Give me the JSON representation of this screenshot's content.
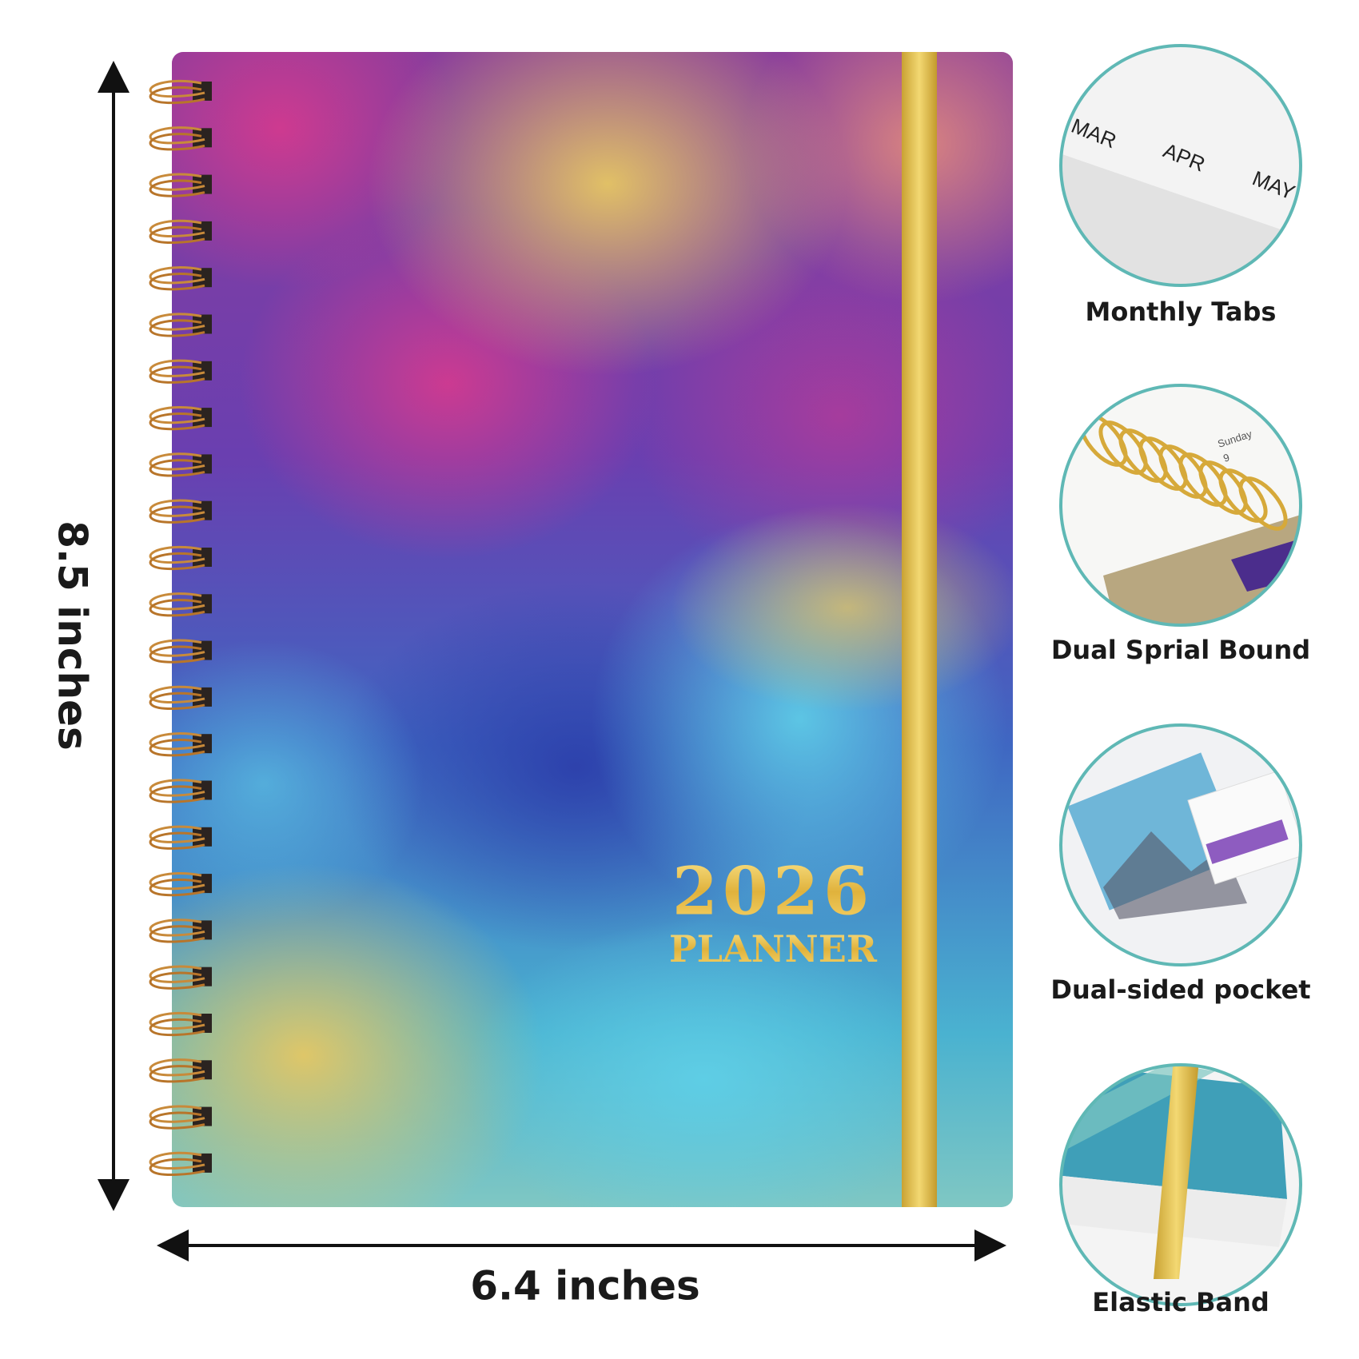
{
  "dimensions": {
    "height": "8.5 inches",
    "width": "6.4 inches"
  },
  "cover": {
    "year": "2026",
    "label": "PLANNER"
  },
  "features": [
    {
      "label": "Monthly Tabs",
      "tabs": [
        "MAR",
        "APR",
        "MAY"
      ]
    },
    {
      "label": "Dual Sprial Bound",
      "page_day": "Sunday",
      "page_date": "9"
    },
    {
      "label": "Dual-sided pocket"
    },
    {
      "label": "Elastic Band"
    }
  ]
}
